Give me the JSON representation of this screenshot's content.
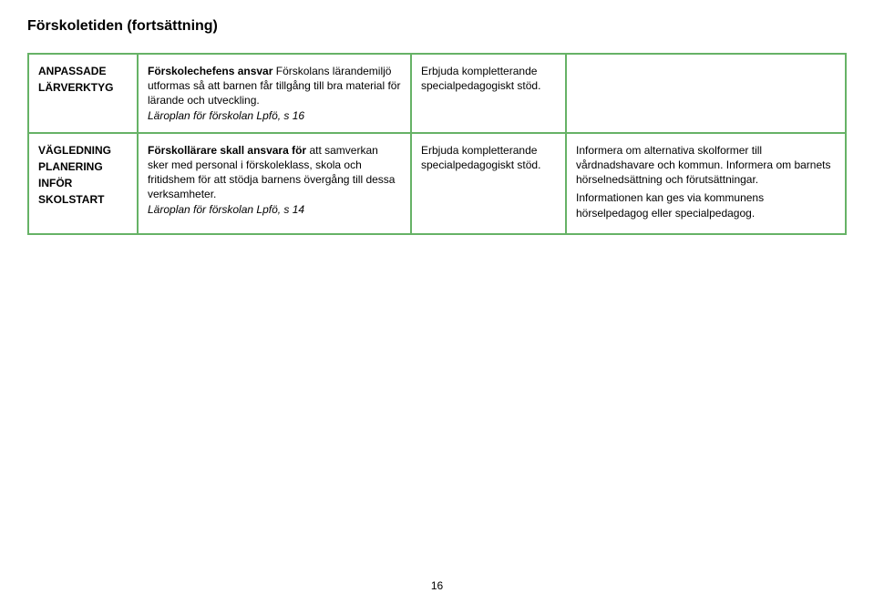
{
  "page_title": "Förskoletiden (fortsättning)",
  "page_number": "16",
  "table": {
    "border_color": "#66b266",
    "rows": [
      {
        "label_lines": [
          "ANPASSADE",
          "LÄRVERKTYG"
        ],
        "col_b": {
          "bold_intro": "Förskolechefens ansvar",
          "body": "Förskolans lärandemiljö utformas så att barnen får tillgång till bra material för lärande och utveckling.",
          "source": "Läroplan för förskolan Lpfö, s 16"
        },
        "col_c": "Erbjuda kompletterande specialpedagogiskt stöd.",
        "col_d": ""
      },
      {
        "label_lines": [
          "VÄGLEDNING",
          "PLANERING",
          "INFÖR",
          "SKOLSTART"
        ],
        "col_b": {
          "bold_intro": "Förskollärare skall ansvara för",
          "body": "att samverkan sker med personal i förskoleklass, skola och fritidshem för att stödja barnens övergång till dessa verksamheter.",
          "source": "Läroplan för förskolan Lpfö, s 14"
        },
        "col_c": "Erbjuda kompletterande specialpedagogiskt stöd.",
        "col_d_para1": "Informera om alternativa skolformer till vårdnadshavare och kommun. Informera om barnets hörselnedsättning och förutsättningar.",
        "col_d_para2": "Informationen kan ges via kommunens hörselpedagog eller specialpedagog."
      }
    ]
  }
}
